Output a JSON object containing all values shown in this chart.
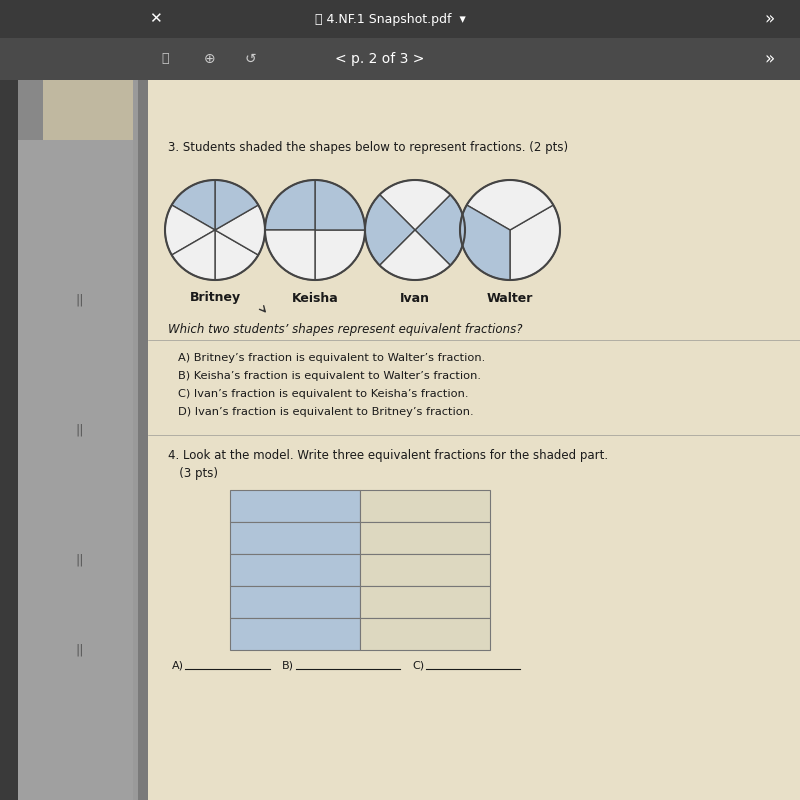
{
  "bg_outer": "#7a7a7a",
  "bg_left_panel": "#9a9a9a",
  "bg_left_dark_strip": "#6a6a6a",
  "toolbar_bg": "#3a3a3a",
  "navbar_bg": "#4a4a4a",
  "page_bg": "#e8e0c8",
  "page_texture": "#ddd8c0",
  "question3_text": "3. Students shaded the shapes below to represent fractions. (2 pts)",
  "question4_text": "4. Look at the model. Write three equivalent fractions for the shaded part.",
  "question4_sub": "   (3 pts)",
  "which_text": "Which two students’ shapes represent equivalent fractions?",
  "options": [
    "A) Britney’s fraction is equivalent to Walter’s fraction.",
    "B) Keisha’s fraction is equivalent to Walter’s fraction.",
    "C) Ivan’s fraction is equivalent to Keisha’s fraction.",
    "D) Ivan’s fraction is equivalent to Britney’s fraction."
  ],
  "student_names": [
    "Britney",
    "Keisha",
    "Ivan",
    "Walter"
  ],
  "circle_shaded": "#b0c4d8",
  "circle_unshaded": "#f0f0f0",
  "circle_edge": "#444444",
  "grid_shaded": "#b0c4d8",
  "grid_unshaded": "#ddd8c0",
  "grid_edge": "#777777",
  "font_color": "#1a1a1a",
  "nav_text": "< p. 2 of 3 >",
  "pdf_title": "4.NF.1 Snapshot.pdf",
  "white_text": "#ffffff",
  "light_gray_text": "#cccccc",
  "separator_line": "#888888"
}
